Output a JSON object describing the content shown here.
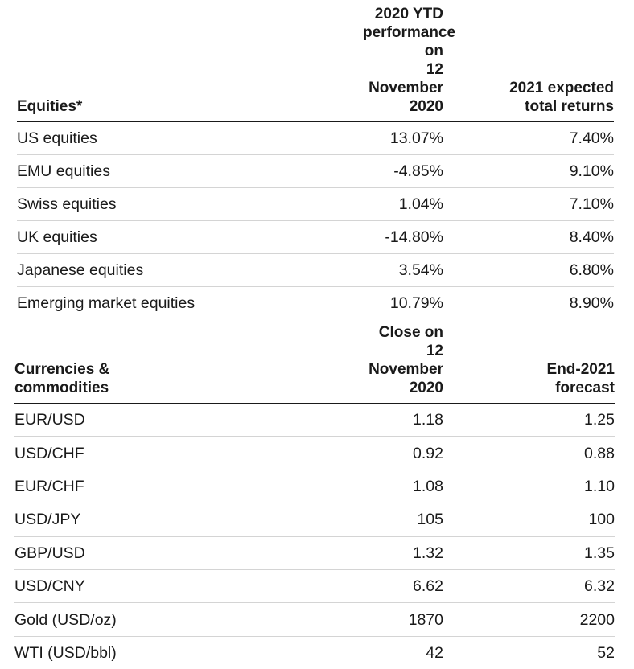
{
  "chart_data": [
    {
      "type": "table",
      "columns": [
        "Equities*",
        "2020 YTD\nperformance on\n12 November 2020",
        "2021 expected\ntotal returns"
      ],
      "rows": [
        [
          "US equities",
          "13.07%",
          "7.40%"
        ],
        [
          "EMU equities",
          "-4.85%",
          "9.10%"
        ],
        [
          "Swiss equities",
          "1.04%",
          "7.10%"
        ],
        [
          "UK equities",
          "-14.80%",
          "8.40%"
        ],
        [
          "Japanese equities",
          "3.54%",
          "6.80%"
        ],
        [
          "Emerging market equities",
          "10.79%",
          "8.90%"
        ]
      ]
    },
    {
      "type": "table",
      "columns": [
        "Currencies &\ncommodities",
        "Close on\n12 November 2020",
        "End-2021\nforecast"
      ],
      "rows": [
        [
          "EUR/USD",
          "1.18",
          "1.25"
        ],
        [
          "USD/CHF",
          "0.92",
          "0.88"
        ],
        [
          "EUR/CHF",
          "1.08",
          "1.10"
        ],
        [
          "USD/JPY",
          "105",
          "100"
        ],
        [
          "GBP/USD",
          "1.32",
          "1.35"
        ],
        [
          "USD/CNY",
          "6.62",
          "6.32"
        ],
        [
          "Gold (USD/oz)",
          "1870",
          "2200"
        ],
        [
          "WTI (USD/bbl)",
          "42",
          "52"
        ]
      ]
    }
  ]
}
